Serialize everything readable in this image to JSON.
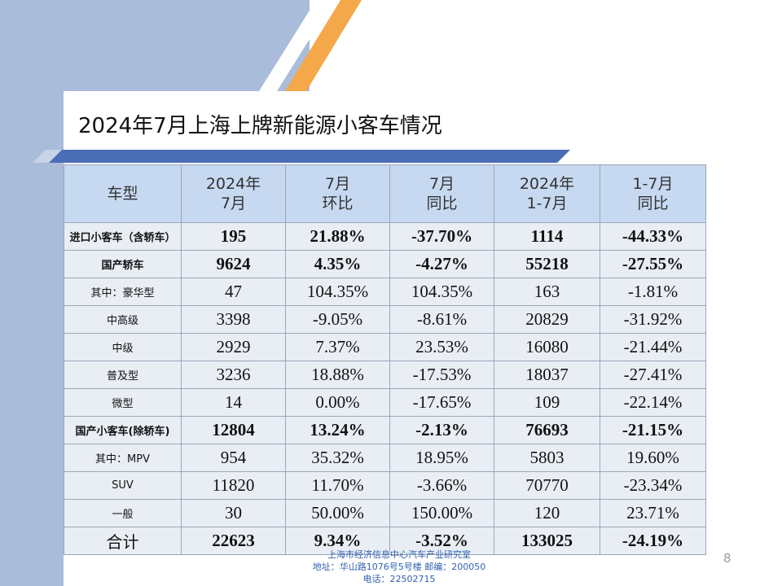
{
  "title": "2024年7月上海上牌新能源小客车情况",
  "headers": [
    [
      "车型"
    ],
    [
      "2024年",
      "7月"
    ],
    [
      "7月",
      "环比"
    ],
    [
      "7月",
      "同比"
    ],
    [
      "2024年",
      "1-7月"
    ],
    [
      "1-7月",
      "同比"
    ]
  ],
  "rows": [
    {
      "label": "进口小客车（含轿车）",
      "bold": true,
      "values": [
        "195",
        "21.88%",
        "-37.70%",
        "1114",
        "-44.33%"
      ]
    },
    {
      "label": "国产轿车",
      "bold": true,
      "values": [
        "9624",
        "4.35%",
        "-4.27%",
        "55218",
        "-27.55%"
      ]
    },
    {
      "label": "其中：豪华型",
      "bold": false,
      "values": [
        "47",
        "104.35%",
        "104.35%",
        "163",
        "-1.81%"
      ]
    },
    {
      "label": "中高级",
      "bold": false,
      "values": [
        "3398",
        "-9.05%",
        "-8.61%",
        "20829",
        "-31.92%"
      ]
    },
    {
      "label": "中级",
      "bold": false,
      "values": [
        "2929",
        "7.37%",
        "23.53%",
        "16080",
        "-21.44%"
      ]
    },
    {
      "label": "普及型",
      "bold": false,
      "values": [
        "3236",
        "18.88%",
        "-17.53%",
        "18037",
        "-27.41%"
      ]
    },
    {
      "label": "微型",
      "bold": false,
      "values": [
        "14",
        "0.00%",
        "-17.65%",
        "109",
        "-22.14%"
      ]
    },
    {
      "label": "国产小客车(除轿车)",
      "bold": true,
      "values": [
        "12804",
        "13.24%",
        "-2.13%",
        "76693",
        "-21.15%"
      ]
    },
    {
      "label": "其中：MPV",
      "bold": false,
      "values": [
        "954",
        "35.32%",
        "18.95%",
        "5803",
        "19.60%"
      ]
    },
    {
      "label": "SUV",
      "bold": false,
      "values": [
        "11820",
        "11.70%",
        "-3.66%",
        "70770",
        "-23.34%"
      ]
    },
    {
      "label": "一般",
      "bold": false,
      "values": [
        "30",
        "50.00%",
        "150.00%",
        "120",
        "23.71%"
      ]
    },
    {
      "label": "合计",
      "bold": true,
      "total": true,
      "values": [
        "22623",
        "9.34%",
        "-3.52%",
        "133025",
        "-24.19%"
      ]
    }
  ],
  "page_number": "8",
  "footer": {
    "line1": "上海市经济信息中心汽车产业研究室",
    "line2": "地址：华山路1076号5号楼    邮编：200050",
    "line3": "电话：22502715"
  },
  "colors": {
    "sidebar": "#a9bcda",
    "stripe_white": "#ffffff",
    "stripe_orange": "#f5a84a",
    "band": "#4a6db5",
    "header_fill": "#c6d9f1",
    "body_fill": "#e9eef5",
    "footer_text": "#3060b0"
  }
}
